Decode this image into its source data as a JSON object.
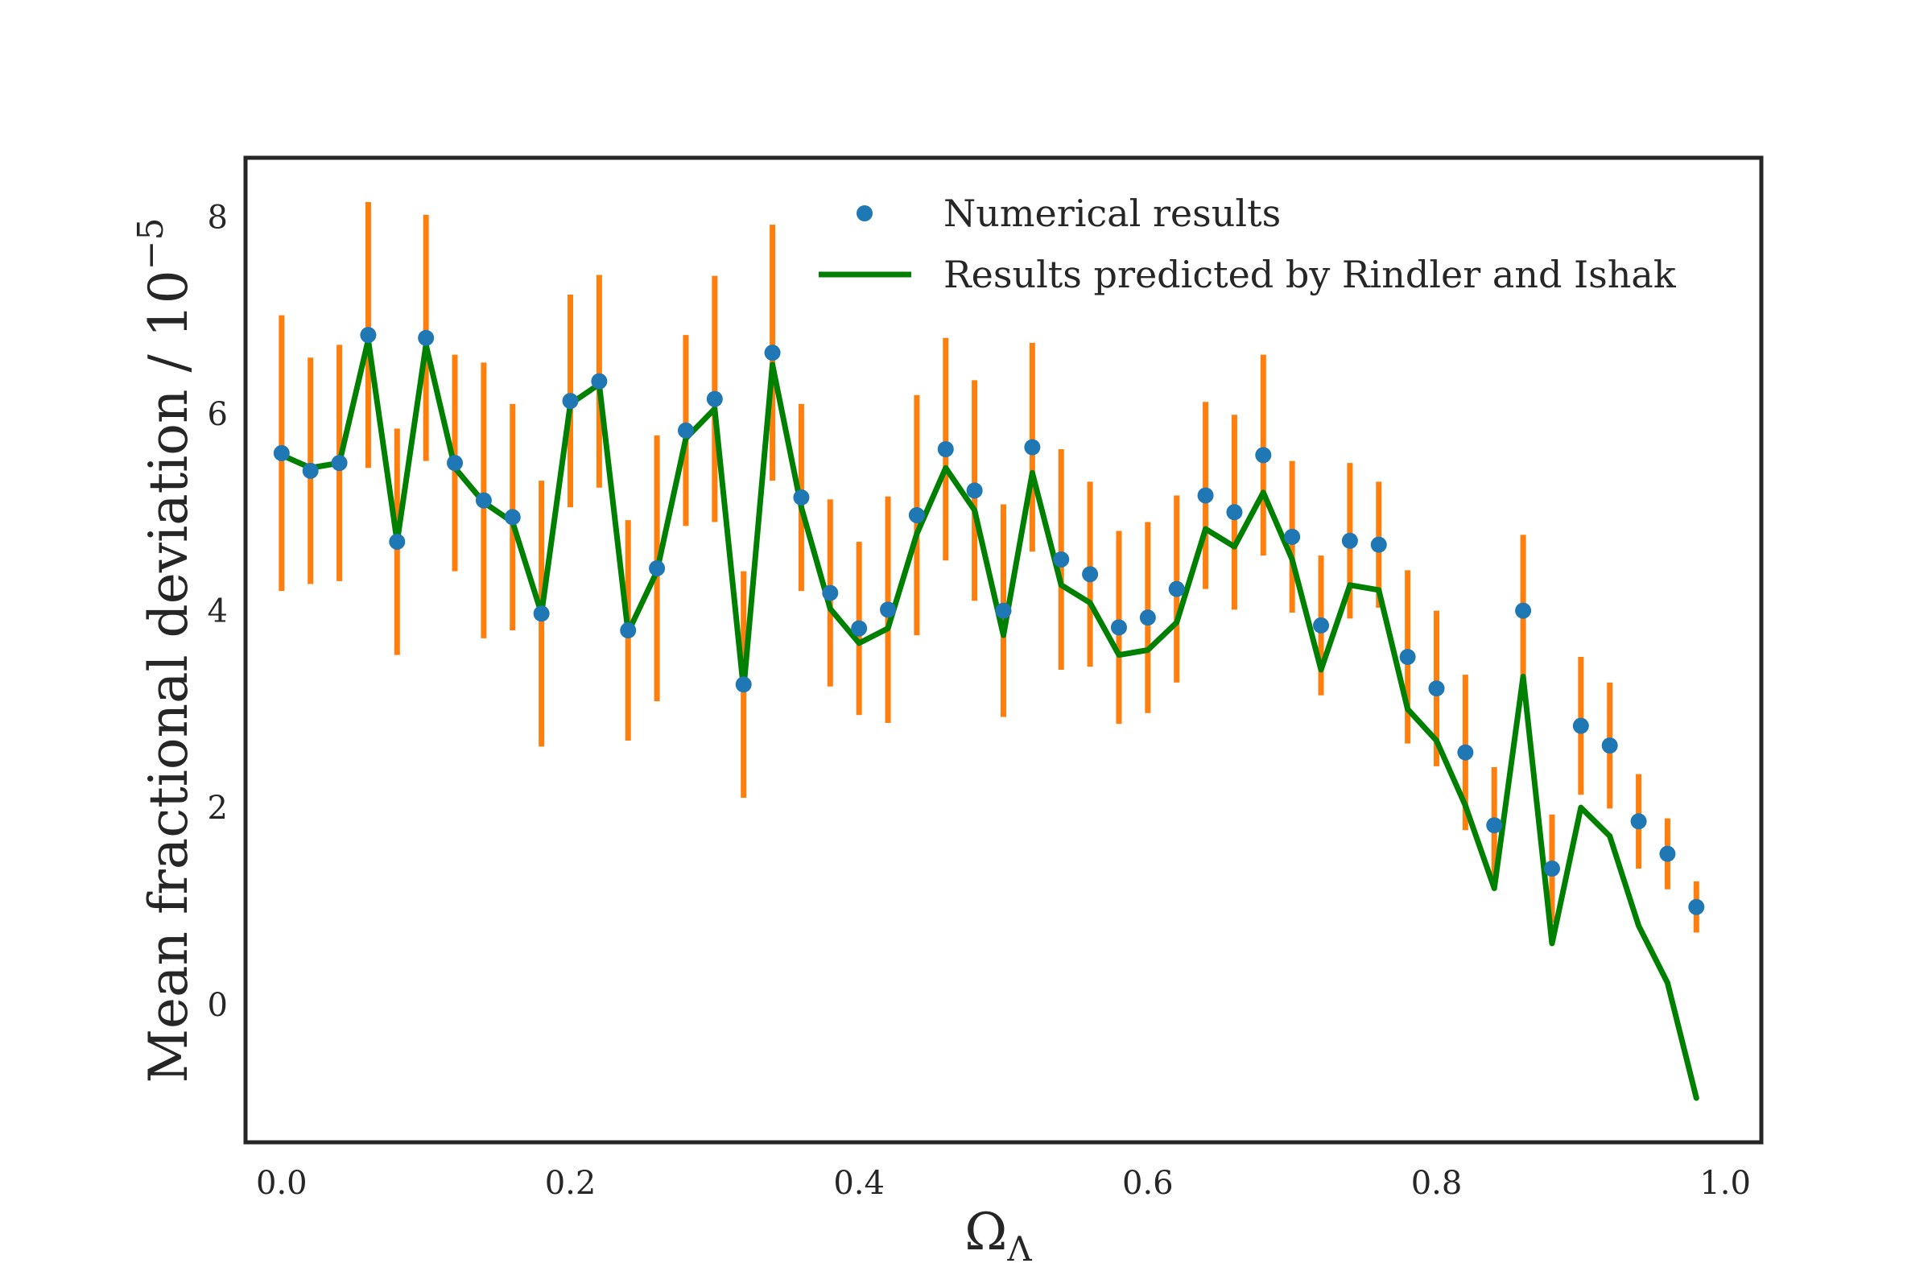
{
  "chart_data": {
    "type": "line",
    "title": "",
    "xlabel": "Ω",
    "xlabel_sub": "Λ",
    "ylabel": "Mean fractional deviation / 10",
    "ylabel_exp": "−5",
    "xlim": [
      -0.025,
      1.025
    ],
    "ylim": [
      -1.4,
      8.6
    ],
    "xticks": [
      0.0,
      0.2,
      0.4,
      0.6,
      0.8,
      1.0
    ],
    "xtick_labels": [
      "0.0",
      "0.2",
      "0.4",
      "0.6",
      "0.8",
      "1.0"
    ],
    "yticks": [
      0,
      2,
      4,
      6,
      8
    ],
    "ytick_labels": [
      "0",
      "2",
      "4",
      "6",
      "8"
    ],
    "grid": false,
    "legend_position": "top-right",
    "colors": {
      "points": "#1f77b4",
      "errorbars": "#ff7f0e",
      "prediction": "#008000",
      "frame": "#262626"
    },
    "series": [
      {
        "name": "Numerical results",
        "kind": "scatter-errorbar",
        "x": [
          0.0,
          0.02,
          0.04,
          0.06,
          0.08,
          0.1,
          0.12,
          0.14,
          0.16,
          0.18,
          0.2,
          0.22,
          0.24,
          0.26,
          0.28,
          0.3,
          0.32,
          0.34,
          0.36,
          0.38,
          0.4,
          0.42,
          0.44,
          0.46,
          0.48,
          0.5,
          0.52,
          0.54,
          0.56,
          0.58,
          0.6,
          0.62,
          0.64,
          0.66,
          0.68,
          0.7,
          0.72,
          0.74,
          0.76,
          0.78,
          0.8,
          0.82,
          0.84,
          0.86,
          0.88,
          0.9,
          0.92,
          0.94,
          0.96,
          0.98
        ],
        "y": [
          5.6,
          5.42,
          5.5,
          6.8,
          4.7,
          6.77,
          5.5,
          5.12,
          4.95,
          3.97,
          6.13,
          6.33,
          3.8,
          4.43,
          5.83,
          6.15,
          3.25,
          6.62,
          5.15,
          4.18,
          3.82,
          4.01,
          4.97,
          5.64,
          5.22,
          4.0,
          5.66,
          4.52,
          4.37,
          3.83,
          3.93,
          4.22,
          5.17,
          5.0,
          5.58,
          4.75,
          3.85,
          4.71,
          4.67,
          3.53,
          3.21,
          2.56,
          1.82,
          4.0,
          1.38,
          2.83,
          2.63,
          1.86,
          1.53,
          0.99
        ],
        "err": [
          1.4,
          1.15,
          1.2,
          1.35,
          1.15,
          1.25,
          1.1,
          1.4,
          1.15,
          1.35,
          1.08,
          1.08,
          1.12,
          1.35,
          0.97,
          1.25,
          1.15,
          1.3,
          0.95,
          0.95,
          0.88,
          1.15,
          1.22,
          1.13,
          1.12,
          1.08,
          1.06,
          1.12,
          0.94,
          0.98,
          0.97,
          0.95,
          0.95,
          0.99,
          1.02,
          0.77,
          0.71,
          0.79,
          0.64,
          0.88,
          0.79,
          0.79,
          0.59,
          0.77,
          0.55,
          0.7,
          0.64,
          0.48,
          0.36,
          0.26
        ]
      },
      {
        "name": "Results predicted by Rindler and Ishak",
        "kind": "line",
        "x": [
          0.0,
          0.02,
          0.04,
          0.06,
          0.08,
          0.1,
          0.12,
          0.14,
          0.16,
          0.18,
          0.2,
          0.22,
          0.24,
          0.26,
          0.28,
          0.3,
          0.32,
          0.34,
          0.36,
          0.38,
          0.4,
          0.42,
          0.44,
          0.46,
          0.48,
          0.5,
          0.52,
          0.54,
          0.56,
          0.58,
          0.6,
          0.62,
          0.64,
          0.66,
          0.68,
          0.7,
          0.72,
          0.74,
          0.76,
          0.78,
          0.8,
          0.82,
          0.84,
          0.86,
          0.88,
          0.9,
          0.92,
          0.94,
          0.96,
          0.98
        ],
        "y": [
          5.58,
          5.45,
          5.5,
          6.75,
          4.7,
          6.7,
          5.45,
          5.1,
          4.9,
          3.97,
          6.1,
          6.3,
          3.78,
          4.4,
          5.75,
          6.05,
          3.2,
          6.5,
          5.05,
          4.02,
          3.67,
          3.82,
          4.78,
          5.45,
          5.02,
          3.75,
          5.4,
          4.26,
          4.08,
          3.55,
          3.6,
          3.88,
          4.83,
          4.65,
          5.2,
          4.52,
          3.4,
          4.26,
          4.21,
          3.0,
          2.68,
          2.02,
          1.18,
          3.33,
          0.62,
          2.0,
          1.71,
          0.8,
          0.22,
          -0.95
        ]
      }
    ]
  }
}
